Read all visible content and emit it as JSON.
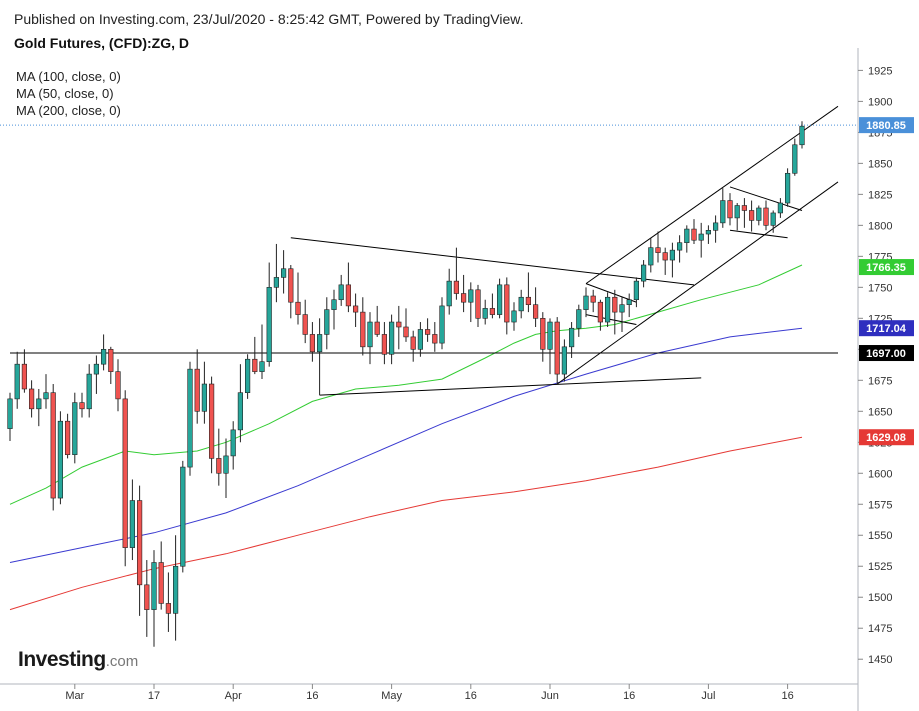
{
  "header": {
    "published": "Published on Investing.com, 23/Jul/2020 - 8:25:42 GMT, Powered by TradingView.",
    "title": "Gold Futures, (CFD):ZG, D"
  },
  "legend": [
    {
      "label": "MA (100, close, 0)"
    },
    {
      "label": "MA (50, close, 0)"
    },
    {
      "label": "MA (200, close, 0)"
    }
  ],
  "logo": {
    "brand": "Investing",
    "suffix": ".com"
  },
  "chart_data": {
    "type": "candlestick",
    "y_axis": {
      "ticks": [
        1450,
        1475,
        1500,
        1525,
        1550,
        1575,
        1600,
        1625,
        1650,
        1675,
        1700,
        1725,
        1750,
        1775,
        1800,
        1825,
        1850,
        1875,
        1900,
        1925
      ],
      "range": [
        1430,
        1935
      ],
      "side": "right"
    },
    "x_axis": {
      "ticks": [
        {
          "label": "Mar",
          "idx": 9
        },
        {
          "label": "17",
          "idx": 20
        },
        {
          "label": "Apr",
          "idx": 31
        },
        {
          "label": "16",
          "idx": 42
        },
        {
          "label": "May",
          "idx": 53
        },
        {
          "label": "16",
          "idx": 64
        },
        {
          "label": "Jun",
          "idx": 75
        },
        {
          "label": "16",
          "idx": 86
        },
        {
          "label": "Jul",
          "idx": 97
        },
        {
          "label": "16",
          "idx": 108
        }
      ]
    },
    "colors": {
      "up": "#26a69a",
      "down": "#ef5350",
      "ma50": "#33cc33",
      "ma100": "#3a3ad0",
      "ma200": "#e53935",
      "wick": "#222222",
      "trendline": "#000000"
    },
    "candles": [
      [
        1636,
        1665,
        1626,
        1660
      ],
      [
        1660,
        1698,
        1652,
        1688
      ],
      [
        1688,
        1700,
        1665,
        1668
      ],
      [
        1668,
        1675,
        1645,
        1652
      ],
      [
        1652,
        1668,
        1638,
        1660
      ],
      [
        1660,
        1680,
        1652,
        1665
      ],
      [
        1665,
        1672,
        1570,
        1580
      ],
      [
        1580,
        1650,
        1575,
        1642
      ],
      [
        1642,
        1648,
        1612,
        1615
      ],
      [
        1615,
        1665,
        1608,
        1657
      ],
      [
        1657,
        1665,
        1645,
        1652
      ],
      [
        1652,
        1688,
        1645,
        1680
      ],
      [
        1680,
        1695,
        1664,
        1688
      ],
      [
        1688,
        1712,
        1683,
        1700
      ],
      [
        1700,
        1702,
        1672,
        1682
      ],
      [
        1682,
        1692,
        1650,
        1660
      ],
      [
        1660,
        1667,
        1525,
        1540
      ],
      [
        1540,
        1595,
        1530,
        1578
      ],
      [
        1578,
        1590,
        1485,
        1510
      ],
      [
        1510,
        1530,
        1468,
        1490
      ],
      [
        1490,
        1538,
        1460,
        1528
      ],
      [
        1528,
        1545,
        1490,
        1495
      ],
      [
        1495,
        1520,
        1472,
        1487
      ],
      [
        1487,
        1550,
        1465,
        1525
      ],
      [
        1525,
        1610,
        1520,
        1605
      ],
      [
        1605,
        1690,
        1598,
        1684
      ],
      [
        1684,
        1700,
        1640,
        1650
      ],
      [
        1650,
        1690,
        1640,
        1672
      ],
      [
        1672,
        1678,
        1600,
        1612
      ],
      [
        1612,
        1636,
        1590,
        1600
      ],
      [
        1600,
        1628,
        1580,
        1614
      ],
      [
        1614,
        1642,
        1603,
        1635
      ],
      [
        1635,
        1688,
        1625,
        1665
      ],
      [
        1665,
        1696,
        1660,
        1692
      ],
      [
        1692,
        1710,
        1680,
        1682
      ],
      [
        1682,
        1720,
        1676,
        1690
      ],
      [
        1690,
        1770,
        1686,
        1750
      ],
      [
        1750,
        1785,
        1738,
        1758
      ],
      [
        1758,
        1780,
        1745,
        1765
      ],
      [
        1765,
        1768,
        1725,
        1738
      ],
      [
        1738,
        1762,
        1720,
        1728
      ],
      [
        1728,
        1740,
        1705,
        1712
      ],
      [
        1712,
        1722,
        1690,
        1698
      ],
      [
        1698,
        1725,
        1663,
        1712
      ],
      [
        1712,
        1742,
        1700,
        1732
      ],
      [
        1732,
        1748,
        1716,
        1740
      ],
      [
        1740,
        1760,
        1735,
        1752
      ],
      [
        1752,
        1770,
        1730,
        1735
      ],
      [
        1735,
        1745,
        1718,
        1730
      ],
      [
        1730,
        1742,
        1695,
        1702
      ],
      [
        1702,
        1730,
        1688,
        1722
      ],
      [
        1722,
        1735,
        1710,
        1712
      ],
      [
        1712,
        1722,
        1688,
        1696
      ],
      [
        1696,
        1728,
        1688,
        1722
      ],
      [
        1722,
        1735,
        1700,
        1718
      ],
      [
        1718,
        1733,
        1706,
        1710
      ],
      [
        1710,
        1715,
        1690,
        1700
      ],
      [
        1700,
        1722,
        1694,
        1716
      ],
      [
        1716,
        1725,
        1706,
        1712
      ],
      [
        1712,
        1722,
        1698,
        1705
      ],
      [
        1705,
        1742,
        1700,
        1735
      ],
      [
        1735,
        1765,
        1728,
        1755
      ],
      [
        1755,
        1782,
        1740,
        1745
      ],
      [
        1745,
        1760,
        1730,
        1738
      ],
      [
        1738,
        1754,
        1722,
        1748
      ],
      [
        1748,
        1752,
        1718,
        1725
      ],
      [
        1725,
        1740,
        1720,
        1733
      ],
      [
        1733,
        1745,
        1725,
        1728
      ],
      [
        1728,
        1757,
        1725,
        1752
      ],
      [
        1752,
        1758,
        1712,
        1722
      ],
      [
        1722,
        1738,
        1715,
        1731
      ],
      [
        1731,
        1748,
        1725,
        1742
      ],
      [
        1742,
        1762,
        1730,
        1736
      ],
      [
        1736,
        1750,
        1718,
        1725
      ],
      [
        1725,
        1730,
        1690,
        1700
      ],
      [
        1700,
        1725,
        1680,
        1722
      ],
      [
        1722,
        1726,
        1672,
        1680
      ],
      [
        1680,
        1708,
        1674,
        1702
      ],
      [
        1702,
        1722,
        1693,
        1717
      ],
      [
        1717,
        1736,
        1710,
        1732
      ],
      [
        1732,
        1750,
        1726,
        1743
      ],
      [
        1743,
        1748,
        1730,
        1738
      ],
      [
        1738,
        1740,
        1715,
        1722
      ],
      [
        1722,
        1746,
        1718,
        1742
      ],
      [
        1742,
        1748,
        1712,
        1730
      ],
      [
        1730,
        1742,
        1714,
        1736
      ],
      [
        1736,
        1745,
        1726,
        1740
      ],
      [
        1740,
        1758,
        1734,
        1755
      ],
      [
        1755,
        1772,
        1750,
        1768
      ],
      [
        1768,
        1790,
        1762,
        1782
      ],
      [
        1782,
        1795,
        1770,
        1778
      ],
      [
        1778,
        1782,
        1760,
        1772
      ],
      [
        1772,
        1786,
        1758,
        1780
      ],
      [
        1780,
        1792,
        1770,
        1786
      ],
      [
        1786,
        1800,
        1778,
        1797
      ],
      [
        1797,
        1805,
        1785,
        1788
      ],
      [
        1788,
        1802,
        1774,
        1793
      ],
      [
        1793,
        1800,
        1785,
        1796
      ],
      [
        1796,
        1808,
        1786,
        1802
      ],
      [
        1802,
        1830,
        1798,
        1820
      ],
      [
        1820,
        1826,
        1800,
        1806
      ],
      [
        1806,
        1818,
        1796,
        1816
      ],
      [
        1816,
        1822,
        1798,
        1812
      ],
      [
        1812,
        1820,
        1795,
        1804
      ],
      [
        1804,
        1816,
        1800,
        1814
      ],
      [
        1814,
        1820,
        1796,
        1800
      ],
      [
        1800,
        1812,
        1794,
        1810
      ],
      [
        1810,
        1822,
        1806,
        1818
      ],
      [
        1818,
        1846,
        1815,
        1842
      ],
      [
        1842,
        1870,
        1840,
        1865
      ],
      [
        1865,
        1884,
        1862,
        1880
      ]
    ],
    "moving_averages": [
      {
        "name": "MA (50, close, 0)",
        "color": "#33cc33",
        "points": [
          [
            0,
            1575
          ],
          [
            5,
            1588
          ],
          [
            10,
            1605
          ],
          [
            16,
            1618
          ],
          [
            20,
            1615
          ],
          [
            26,
            1618
          ],
          [
            30,
            1625
          ],
          [
            36,
            1640
          ],
          [
            42,
            1658
          ],
          [
            48,
            1668
          ],
          [
            54,
            1671
          ],
          [
            60,
            1676
          ],
          [
            66,
            1693
          ],
          [
            70,
            1705
          ],
          [
            73,
            1712
          ],
          [
            76,
            1715
          ],
          [
            80,
            1717
          ],
          [
            84,
            1720
          ],
          [
            90,
            1730
          ],
          [
            96,
            1740
          ],
          [
            104,
            1752
          ],
          [
            110,
            1768
          ]
        ]
      },
      {
        "name": "MA (100, close, 0)",
        "color": "#3a3ad0",
        "points": [
          [
            0,
            1528
          ],
          [
            10,
            1540
          ],
          [
            20,
            1552
          ],
          [
            30,
            1568
          ],
          [
            40,
            1590
          ],
          [
            50,
            1615
          ],
          [
            60,
            1640
          ],
          [
            70,
            1662
          ],
          [
            80,
            1680
          ],
          [
            90,
            1697
          ],
          [
            100,
            1710
          ],
          [
            110,
            1717
          ]
        ]
      },
      {
        "name": "MA (200, close, 0)",
        "color": "#e53935",
        "points": [
          [
            0,
            1490
          ],
          [
            10,
            1508
          ],
          [
            20,
            1523
          ],
          [
            30,
            1535
          ],
          [
            40,
            1550
          ],
          [
            50,
            1565
          ],
          [
            60,
            1578
          ],
          [
            70,
            1585
          ],
          [
            80,
            1594
          ],
          [
            90,
            1605
          ],
          [
            100,
            1618
          ],
          [
            110,
            1629
          ]
        ]
      }
    ],
    "trendlines": [
      {
        "name": "horizontal-support",
        "p1": [
          0,
          1697
        ],
        "p2": [
          115,
          1697
        ]
      },
      {
        "name": "triangle-upper",
        "p1": [
          39,
          1790
        ],
        "p2": [
          95,
          1752
        ]
      },
      {
        "name": "triangle-lower",
        "p1": [
          43,
          1663
        ],
        "p2": [
          96,
          1677
        ]
      },
      {
        "name": "channel-upper",
        "p1": [
          80,
          1753
        ],
        "p2": [
          115,
          1896
        ]
      },
      {
        "name": "channel-lower",
        "p1": [
          76,
          1672
        ],
        "p2": [
          115,
          1835
        ]
      },
      {
        "name": "pennant-upper",
        "p1": [
          80,
          1753
        ],
        "p2": [
          87,
          1738
        ]
      },
      {
        "name": "pennant-lower",
        "p1": [
          80,
          1728
        ],
        "p2": [
          87,
          1720
        ]
      },
      {
        "name": "flag-upper",
        "p1": [
          100,
          1831
        ],
        "p2": [
          110,
          1812
        ]
      },
      {
        "name": "flag-lower",
        "p1": [
          100,
          1796
        ],
        "p2": [
          108,
          1790
        ]
      }
    ],
    "last_price": {
      "value": 1880.85,
      "label": "1880.85",
      "color": "#4a90d9"
    },
    "price_tags": [
      {
        "value": 1766.35,
        "label": "1766.35",
        "color": "#33cc33"
      },
      {
        "value": 1717.04,
        "label": "1717.04",
        "color": "#2e2ebf"
      },
      {
        "value": 1697.0,
        "label": "1697.00",
        "color": "#000000"
      },
      {
        "value": 1629.08,
        "label": "1629.08",
        "color": "#e53935"
      }
    ]
  }
}
